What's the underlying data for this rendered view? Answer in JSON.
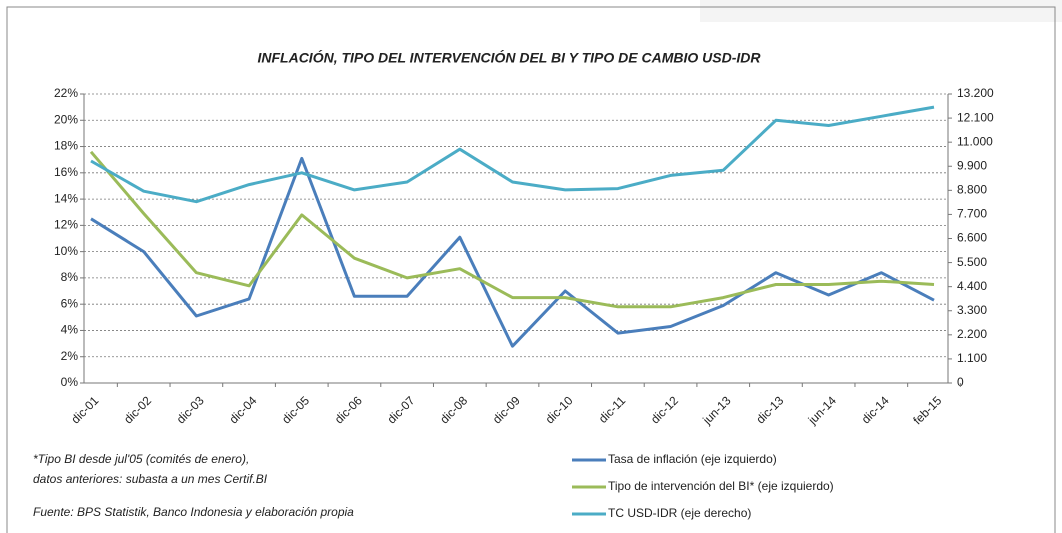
{
  "chart_data": {
    "type": "line",
    "title": "INFLACIÓN, TIPO DEL INTERVENCIÓN DEL BI Y TIPO DE CAMBIO USD-IDR",
    "categories": [
      "dic-01",
      "dic-02",
      "dic-03",
      "dic-04",
      "dic-05",
      "dic-06",
      "dic-07",
      "dic-08",
      "dic-09",
      "dic-10",
      "dic-11",
      "dic-12",
      "jun-13",
      "dic-13",
      "jun-14",
      "dic-14",
      "feb-15"
    ],
    "series": [
      {
        "name": "Tasa de inflación (eje izquierdo)",
        "color": "#4a7ebb",
        "values": [
          12.5,
          10.0,
          5.1,
          6.4,
          17.1,
          6.6,
          6.6,
          11.1,
          2.8,
          7.0,
          3.8,
          4.3,
          5.9,
          8.4,
          6.7,
          8.4,
          6.3
        ]
      },
      {
        "name": "Tipo de intervención del BI* (eje izquierdo)",
        "color": "#9bbb59",
        "values": [
          17.6,
          12.9,
          8.4,
          7.4,
          12.8,
          9.5,
          8.0,
          8.7,
          6.5,
          6.5,
          5.8,
          5.8,
          6.5,
          7.5,
          7.5,
          7.75,
          7.5
        ]
      },
      {
        "name": "TC USD-IDR (eje derecho)",
        "color": "#4bacc6",
        "axis": "y2",
        "values": [
          10140,
          8760,
          8280,
          9060,
          9600,
          8820,
          9180,
          10680,
          9180,
          8820,
          8880,
          9480,
          9720,
          12000,
          11760,
          12180,
          12600
        ]
      }
    ],
    "ylim": [
      0,
      22
    ],
    "yticks": [
      {
        "value": 0,
        "label": "0%"
      },
      {
        "value": 2,
        "label": "2%"
      },
      {
        "value": 4,
        "label": "4%"
      },
      {
        "value": 6,
        "label": "6%"
      },
      {
        "value": 8,
        "label": "8%"
      },
      {
        "value": 10,
        "label": "10%"
      },
      {
        "value": 12,
        "label": "12%"
      },
      {
        "value": 14,
        "label": "14%"
      },
      {
        "value": 16,
        "label": "16%"
      },
      {
        "value": 18,
        "label": "18%"
      },
      {
        "value": 20,
        "label": "20%"
      },
      {
        "value": 22,
        "label": "22%"
      }
    ],
    "y2lim": [
      0,
      13200
    ],
    "y2ticks": [
      0,
      {
        "value": 1100,
        "label": "1.100"
      },
      {
        "value": 2200,
        "label": "2.200"
      },
      {
        "value": 3300,
        "label": "3.300"
      },
      {
        "value": 4400,
        "label": "4.400"
      },
      {
        "value": 5500,
        "label": "5.500"
      },
      {
        "value": 6600,
        "label": "6.600"
      },
      {
        "value": 7700,
        "label": "7.700"
      },
      {
        "value": 8800,
        "label": "8.800"
      },
      {
        "value": 9900,
        "label": "9.900"
      },
      {
        "value": 11000,
        "label": "11.000"
      },
      {
        "value": 12100,
        "label": "12.100"
      },
      {
        "value": 13200,
        "label": "13.200"
      }
    ],
    "grid": true,
    "notes": [
      "*Tipo BI desde jul'05 (comités de enero),",
      "datos anteriores:  subasta a un mes Certif.BI",
      "Fuente: BPS Statistik, Banco Indonesia y elaboración propia"
    ]
  }
}
